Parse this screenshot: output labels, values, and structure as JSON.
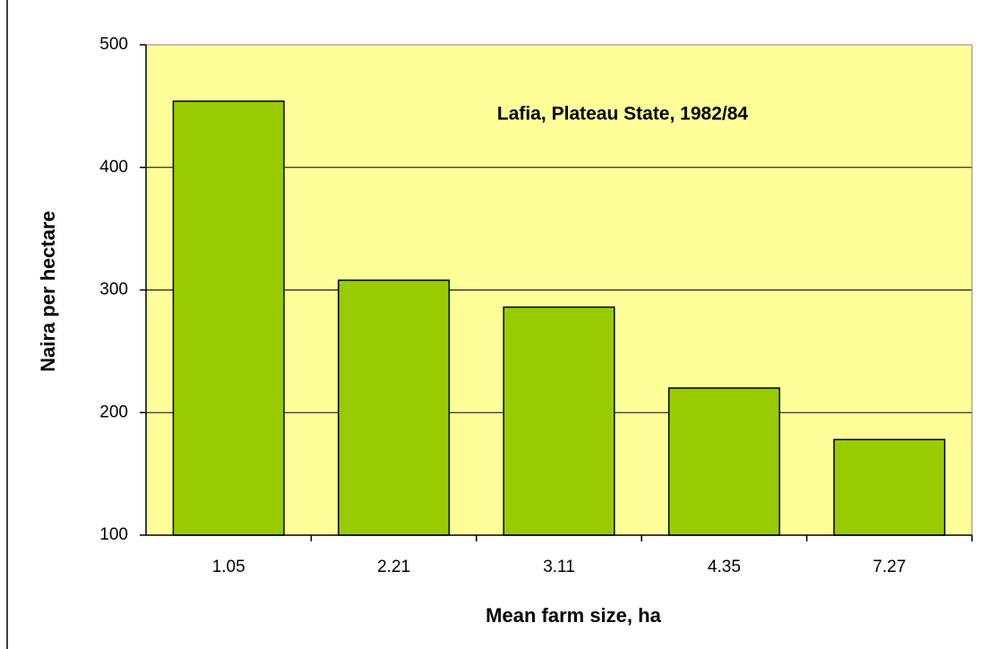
{
  "chart_data": {
    "type": "bar",
    "annotation": "Lafia, Plateau State, 1982/84",
    "x_label": "Mean farm size, ha",
    "y_label": "Naira per hectare",
    "categories": [
      "1.05",
      "2.21",
      "3.11",
      "4.35",
      "7.27"
    ],
    "values": [
      454,
      308,
      286,
      220,
      178
    ],
    "color": "#99cc00",
    "ylim": [
      100,
      500
    ],
    "yticks": [
      100,
      200,
      300,
      400,
      500
    ],
    "grid": true
  }
}
